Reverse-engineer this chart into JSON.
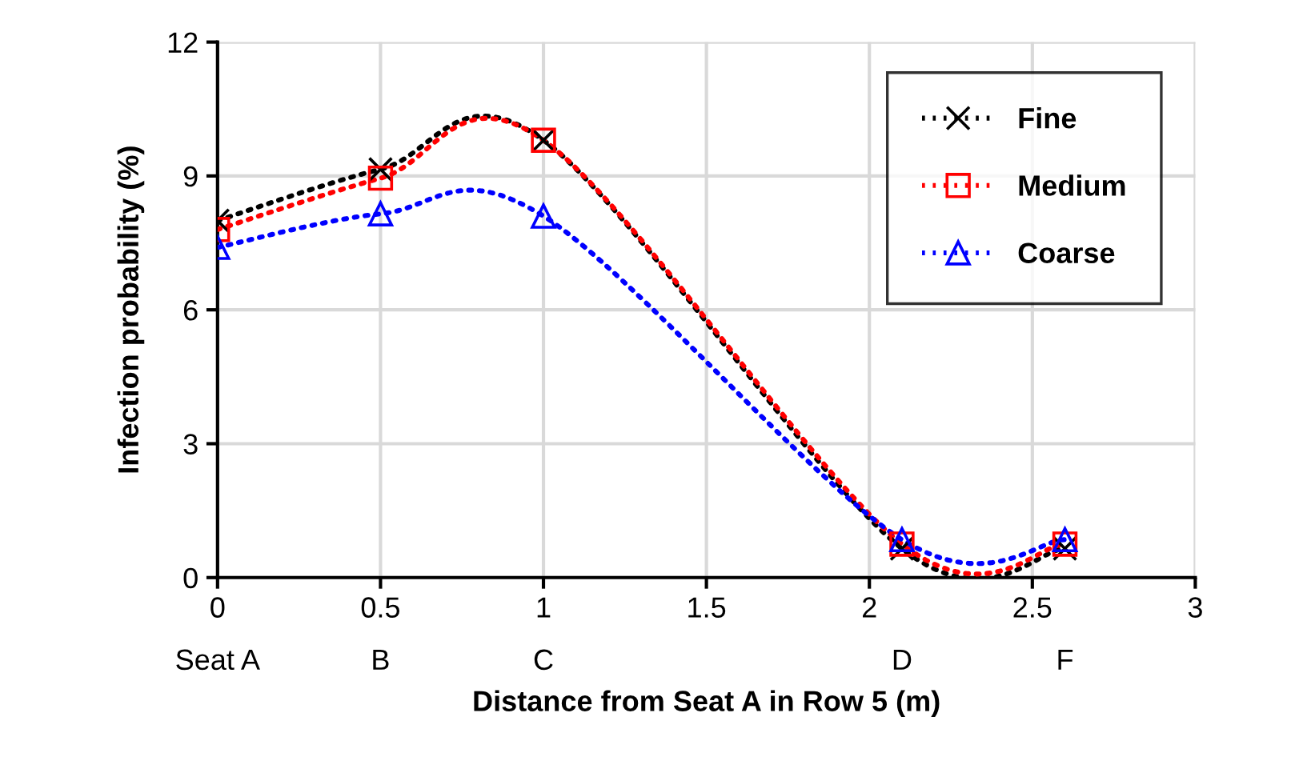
{
  "chart_data": {
    "type": "line",
    "xlabel": "Distance from Seat A in Row 5 (m)",
    "ylabel": "Infection probability (%)",
    "x": [
      0,
      0.5,
      1,
      2.1,
      2.6
    ],
    "series": [
      {
        "name": "Fine",
        "color": "#000000",
        "marker": "cross",
        "values": [
          8.0,
          9.15,
          9.8,
          0.65,
          0.65
        ]
      },
      {
        "name": "Medium",
        "color": "#ff0000",
        "marker": "square",
        "values": [
          7.8,
          8.95,
          9.8,
          0.75,
          0.75
        ]
      },
      {
        "name": "Coarse",
        "color": "#0000ff",
        "marker": "triangle",
        "values": [
          7.4,
          8.15,
          8.1,
          0.85,
          0.85
        ]
      }
    ],
    "xlim": [
      0,
      3
    ],
    "xticks": [
      0,
      0.5,
      1,
      1.5,
      2,
      2.5,
      3
    ],
    "annotations": [
      "Seat A",
      "B",
      "C",
      "D",
      "F"
    ],
    "ylim": [
      0,
      12
    ],
    "yticks": [
      0,
      3,
      6,
      9,
      12
    ],
    "grid": true,
    "legend": "top right",
    "line_style": "dotted"
  }
}
